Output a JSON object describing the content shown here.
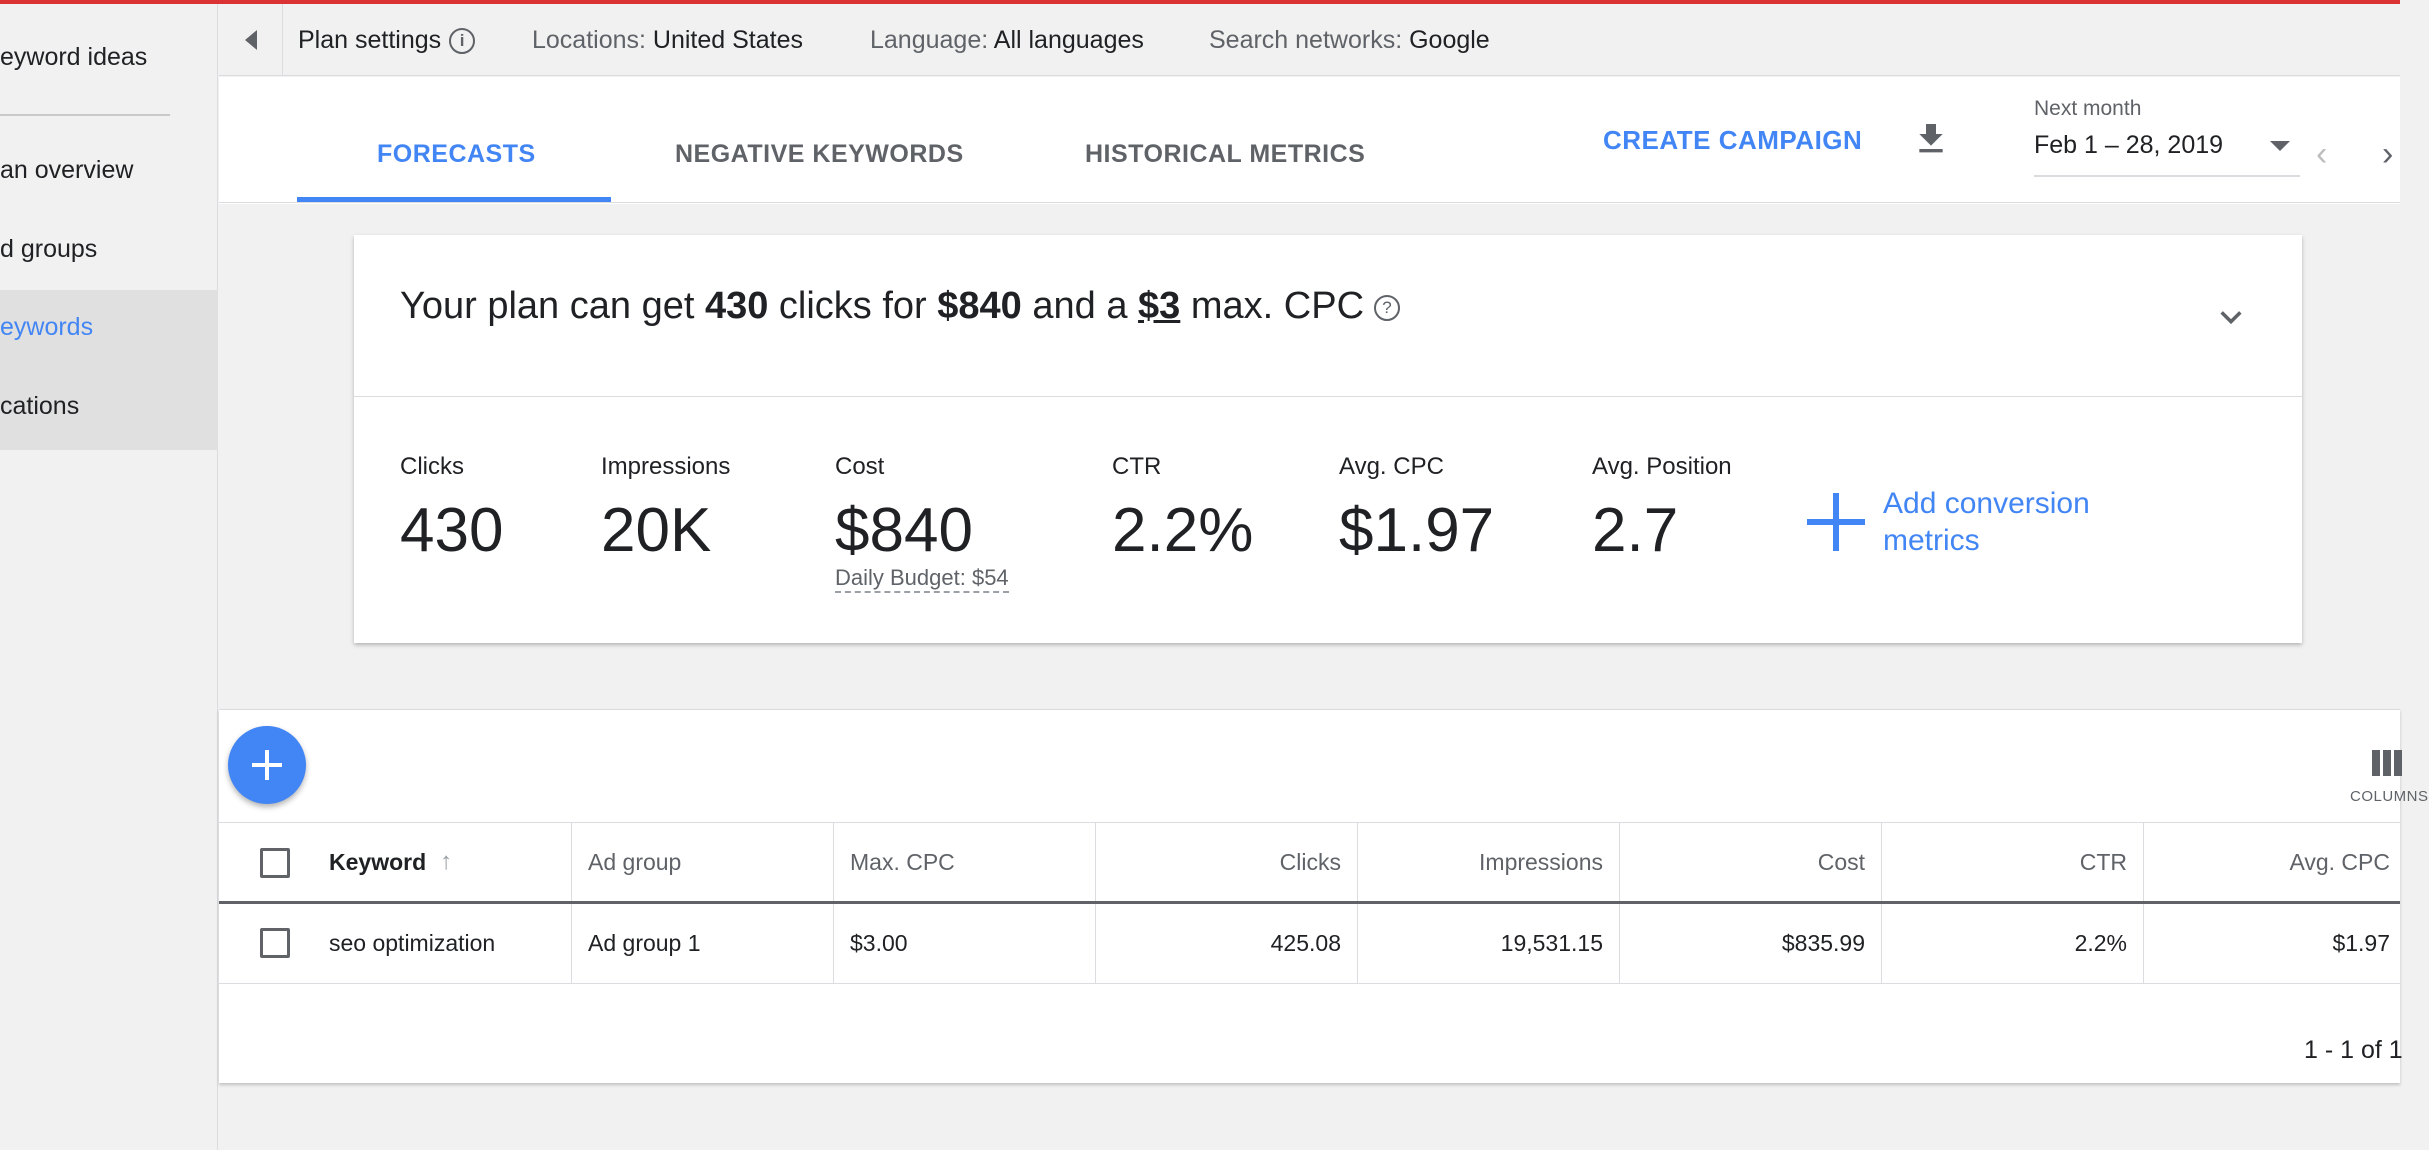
{
  "colors": {
    "accent": "#4285f4",
    "top_bar": "#db3236",
    "text": "#202124",
    "muted": "#5f6368"
  },
  "sidebar": {
    "items": [
      {
        "label": "eyword ideas"
      },
      {
        "label": "an overview"
      },
      {
        "label": "d groups"
      },
      {
        "label": "eywords"
      },
      {
        "label": "cations"
      }
    ]
  },
  "settings_bar": {
    "plan_settings": "Plan settings",
    "info_icon": "i",
    "locations_label": "Locations:",
    "locations_value": "United States",
    "language_label": "Language:",
    "language_value": "All languages",
    "networks_label": "Search networks:",
    "networks_value": "Google"
  },
  "tabs": [
    {
      "label": "FORECASTS",
      "active": true
    },
    {
      "label": "NEGATIVE KEYWORDS",
      "active": false
    },
    {
      "label": "HISTORICAL METRICS",
      "active": false
    }
  ],
  "toolbar": {
    "create_campaign": "CREATE CAMPAIGN",
    "date_label": "Next month",
    "date_value": "Feb 1 – 28, 2019"
  },
  "forecast": {
    "headline_pre": "Your plan can get",
    "clicks": "430",
    "mid1": "clicks for",
    "cost": "$840",
    "mid2": "and a",
    "max_cpc": "$3",
    "post": "max. CPC",
    "help_icon": "?",
    "metrics": [
      {
        "label": "Clicks",
        "value": "430"
      },
      {
        "label": "Impressions",
        "value": "20K"
      },
      {
        "label": "Cost",
        "value": "$840"
      },
      {
        "label": "CTR",
        "value": "2.2%"
      },
      {
        "label": "Avg. CPC",
        "value": "$1.97"
      },
      {
        "label": "Avg. Position",
        "value": "2.7"
      }
    ],
    "daily_budget": "Daily Budget: $54",
    "add_conversion": "Add conversion metrics"
  },
  "table": {
    "columns_button": "COLUMNS",
    "headers": [
      "Keyword",
      "Ad group",
      "Max. CPC",
      "Clicks",
      "Impressions",
      "Cost",
      "CTR",
      "Avg. CPC"
    ],
    "rows": [
      {
        "keyword": "seo optimization",
        "ad_group": "Ad group 1",
        "max_cpc": "$3.00",
        "clicks": "425.08",
        "impressions": "19,531.15",
        "cost": "$835.99",
        "ctr": "2.2%",
        "avg_cpc": "$1.97"
      }
    ],
    "pagination": "1 - 1 of 1"
  }
}
